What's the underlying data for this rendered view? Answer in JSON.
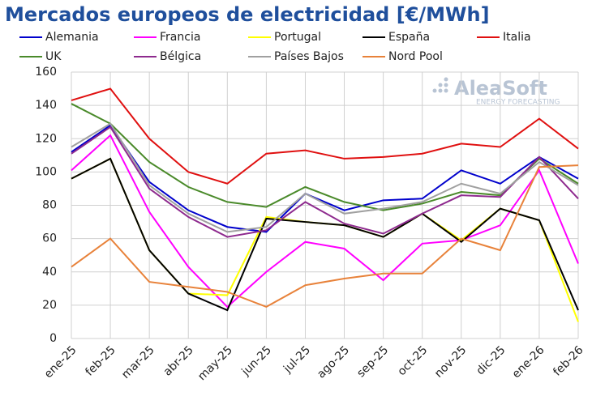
{
  "chart_data": {
    "type": "line",
    "title": "Mercados europeos de electricidad [€/MWh]",
    "logo": {
      "name": "AleaSoft",
      "tagline": "ENERGY FORECASTING"
    },
    "categories": [
      "ene-25",
      "feb-25",
      "mar-25",
      "abr-25",
      "may-25",
      "jun-25",
      "jul-25",
      "ago-25",
      "sep-25",
      "oct-25",
      "nov-25",
      "dic-25",
      "ene-26",
      "feb-26"
    ],
    "ylim": [
      0,
      160
    ],
    "yticks": [
      0,
      20,
      40,
      60,
      80,
      100,
      120,
      140,
      160
    ],
    "grid": true,
    "series": [
      {
        "name": "Alemania",
        "color": "#0000cc",
        "values": [
          112,
          128,
          94,
          77,
          67,
          64,
          87,
          77,
          83,
          84,
          101,
          93,
          109,
          96
        ]
      },
      {
        "name": "Francia",
        "color": "#ff00ff",
        "values": [
          101,
          122,
          76,
          43,
          19,
          40,
          58,
          54,
          35,
          57,
          59,
          68,
          101,
          45
        ]
      },
      {
        "name": "Portugal",
        "color": "#ffff00",
        "values": [
          96,
          108,
          53,
          27,
          26,
          73,
          70,
          68,
          61,
          75,
          59,
          78,
          71,
          10
        ]
      },
      {
        "name": "España",
        "color": "#000000",
        "values": [
          96,
          108,
          53,
          27,
          17,
          72,
          70,
          68,
          61,
          75,
          58,
          78,
          71,
          17
        ]
      },
      {
        "name": "Italia",
        "color": "#e01010",
        "values": [
          143,
          150,
          120,
          100,
          93,
          111,
          113,
          108,
          109,
          111,
          117,
          115,
          132,
          114
        ]
      },
      {
        "name": "UK",
        "color": "#4a8a2a",
        "values": [
          141,
          129,
          106,
          91,
          82,
          79,
          91,
          82,
          77,
          81,
          88,
          86,
          108,
          93
        ]
      },
      {
        "name": "Bélgica",
        "color": "#8e2a8e",
        "values": [
          111,
          127,
          90,
          73,
          61,
          65,
          82,
          69,
          63,
          75,
          86,
          85,
          109,
          84
        ]
      },
      {
        "name": "Países Bajos",
        "color": "#a0a0a0",
        "values": [
          115,
          129,
          92,
          75,
          64,
          67,
          87,
          75,
          78,
          82,
          93,
          87,
          106,
          92
        ]
      },
      {
        "name": "Nord Pool",
        "color": "#e8823a",
        "values": [
          43,
          60,
          34,
          31,
          28,
          19,
          32,
          36,
          39,
          39,
          60,
          53,
          103,
          104
        ]
      }
    ]
  }
}
